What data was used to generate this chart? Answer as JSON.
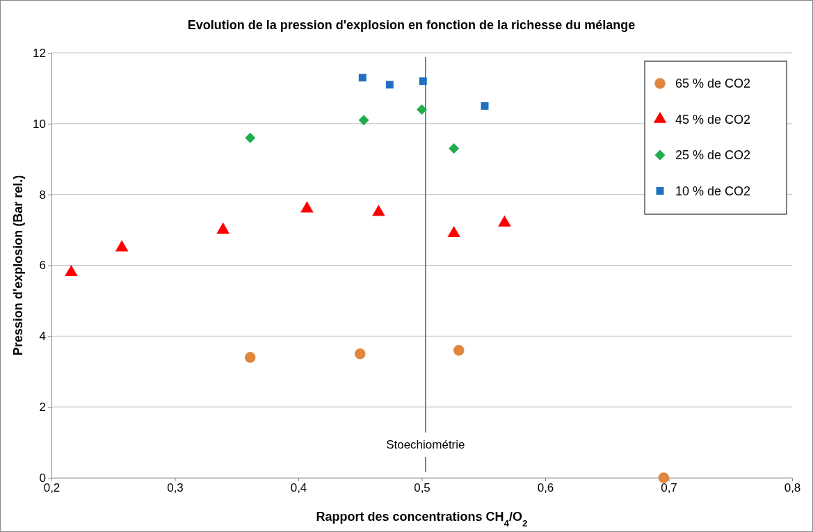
{
  "chart_data": {
    "type": "scatter",
    "title": "Evolution de la pression d'explosion en fonction de la richesse du mélange",
    "xlabel": "Rapport des concentrations CH$_{4}$/O$_{2}$",
    "ylabel": "Pression d'explosion  (Bar rel.)",
    "xlim": [
      0.2,
      0.8
    ],
    "xticks": [
      {
        "value": 0.2,
        "label": "0,2"
      },
      {
        "value": 0.3,
        "label": "0,3"
      },
      {
        "value": 0.4,
        "label": "0,4"
      },
      {
        "value": 0.5,
        "label": "0,5"
      },
      {
        "value": 0.6,
        "label": "0,6"
      },
      {
        "value": 0.7,
        "label": "0,7"
      },
      {
        "value": 0.8,
        "label": "0,8"
      }
    ],
    "ylim": [
      0,
      12
    ],
    "yticks": [
      0,
      2,
      4,
      6,
      8,
      10,
      12
    ],
    "grid": "y",
    "legend": "top right",
    "ref_lines": [
      {
        "axis": "x",
        "value": 0.503,
        "label": "Stoechiométrie",
        "color": "#2e6fb5"
      }
    ],
    "series": [
      {
        "name": "65 % de CO2",
        "color": "#e0873f",
        "marker": "circle",
        "x": [
          0.361,
          0.45,
          0.53,
          0.696
        ],
        "values": [
          3.4,
          3.5,
          3.6,
          0
        ]
      },
      {
        "name": "45 % de CO2",
        "color": "#ff0000",
        "marker": "triangle",
        "x": [
          0.216,
          0.257,
          0.339,
          0.407,
          0.465,
          0.526,
          0.567
        ],
        "values": [
          5.8,
          6.5,
          7.0,
          7.6,
          7.5,
          6.9,
          7.2
        ]
      },
      {
        "name": "25 % de CO2",
        "color": "#1fae4b",
        "marker": "diamond",
        "x": [
          0.361,
          0.453,
          0.5,
          0.526
        ],
        "values": [
          9.6,
          10.1,
          10.4,
          9.3
        ]
      },
      {
        "name": "10 % de CO2",
        "color": "#1f70c1",
        "marker": "square",
        "x": [
          0.452,
          0.474,
          0.501,
          0.551
        ],
        "values": [
          11.3,
          11.1,
          11.2,
          10.5
        ]
      }
    ]
  }
}
